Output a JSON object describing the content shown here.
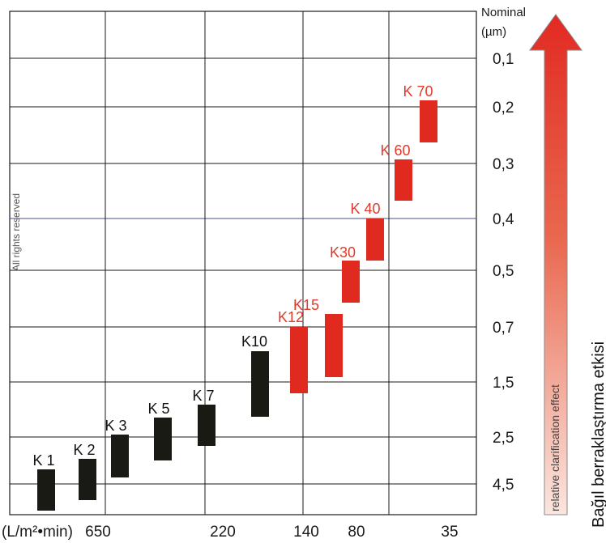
{
  "chart_data": {
    "type": "bar",
    "title": "",
    "y_axis_title": "Nominal",
    "y_axis_unit": "(µm)",
    "y_tick_labels": [
      "0,1",
      "0,2",
      "0,3",
      "0,4",
      "0,5",
      "0,7",
      "1,5",
      "2,5",
      "4,5"
    ],
    "x_axis_unit": "(L/m²•min)",
    "x_tick_labels": [
      "650",
      "220",
      "140",
      "80",
      "35"
    ],
    "watermark": "All rights reserved",
    "arrow_label": "relative clarification effect",
    "right_label": "Bağıl berraklaştırma etkisi",
    "grid": true,
    "series": [
      {
        "label": "K 1",
        "micron_range": [
          "4,5",
          "2,5"
        ],
        "color": "#1a1a14"
      },
      {
        "label": "K 2",
        "micron_range": [
          "4,5",
          "2,5"
        ],
        "color": "#1a1a14"
      },
      {
        "label": "K 3",
        "micron_range": [
          "2,5",
          "1,5"
        ],
        "color": "#1a1a14"
      },
      {
        "label": "K 5",
        "micron_range": [
          "2,5",
          "1,5"
        ],
        "color": "#1a1a14"
      },
      {
        "label": "K 7",
        "micron_range": [
          "2,5",
          "1,5"
        ],
        "color": "#1a1a14"
      },
      {
        "label": "K10",
        "micron_range": [
          "1,5",
          "0,7"
        ],
        "color": "#1a1a14"
      },
      {
        "label": "K12",
        "micron_range": [
          "1,5",
          "0,7"
        ],
        "color": "#e0291f"
      },
      {
        "label": "K15",
        "micron_range": [
          "1,5",
          "0,7"
        ],
        "color": "#e0291f"
      },
      {
        "label": "K30",
        "micron_range": [
          "0,7",
          "0,5"
        ],
        "color": "#e0291f"
      },
      {
        "label": "K 40",
        "micron_range": [
          "0,5",
          "0,4"
        ],
        "color": "#e0291f"
      },
      {
        "label": "K 60",
        "micron_range": [
          "0,4",
          "0,3"
        ],
        "color": "#e0291f"
      },
      {
        "label": "K 70",
        "micron_range": [
          "0,3",
          "0,2"
        ],
        "color": "#e0291f"
      }
    ]
  }
}
